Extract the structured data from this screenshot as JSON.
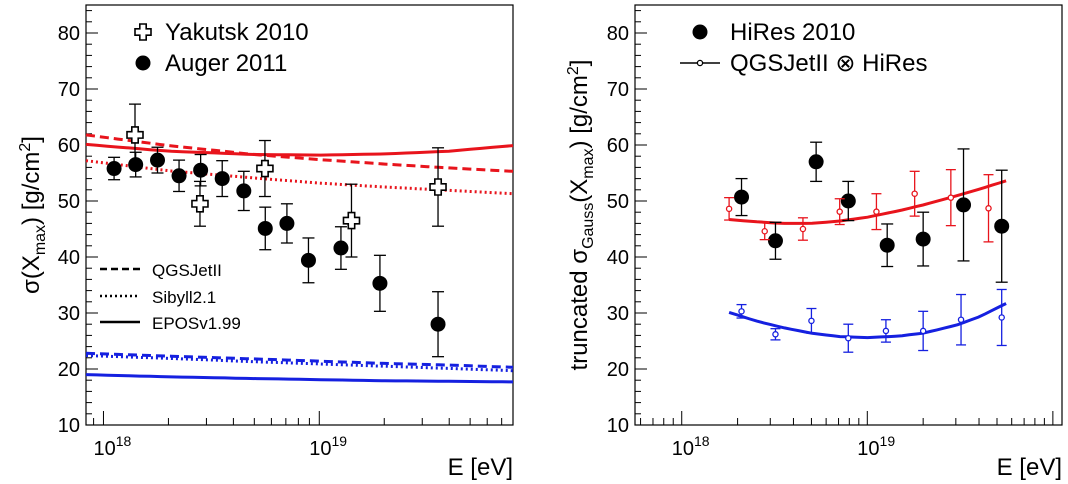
{
  "chart_data": [
    {
      "type": "scatter",
      "xlabel": "E [eV]",
      "ylabel": "σ(X_max) [g/cm²]",
      "xscale": "log",
      "xlim": [
        8.3e+17,
        7.9e+19
      ],
      "ylim": [
        10,
        85
      ],
      "xticks": [
        {
          "base": "10",
          "exp": "18",
          "value": 1e+18
        },
        {
          "base": "10",
          "exp": "19",
          "value": 1e+19
        }
      ],
      "yticks": [
        10,
        20,
        30,
        40,
        50,
        60,
        70,
        80
      ],
      "legend_top": [
        {
          "label": "Yakutsk 2010",
          "marker": "open-cross"
        },
        {
          "label": "Auger 2011",
          "marker": "filled-circle"
        }
      ],
      "legend_models": [
        {
          "label": "QGSJetII",
          "style": "dashed"
        },
        {
          "label": "Sibyll2.1",
          "style": "dotted"
        },
        {
          "label": "EPOSv1.99",
          "style": "solid"
        }
      ],
      "series": [
        {
          "name": "Yakutsk 2010",
          "marker": "open-cross",
          "points": [
            {
              "x": 1.4e+18,
              "y": 61.8,
              "err": 5.5
            },
            {
              "x": 2.8e+18,
              "y": 49.5,
              "err": 4.0
            },
            {
              "x": 5.6e+18,
              "y": 55.8,
              "err": 5.0
            },
            {
              "x": 1.41e+19,
              "y": 46.5,
              "err": 6.5
            },
            {
              "x": 3.55e+19,
              "y": 52.5,
              "err": 7.0
            }
          ]
        },
        {
          "name": "Auger 2011",
          "marker": "filled-circle",
          "points": [
            {
              "x": 1.12e+18,
              "y": 55.8,
              "err": 2.0
            },
            {
              "x": 1.41e+18,
              "y": 56.5,
              "err": 2.2
            },
            {
              "x": 1.78e+18,
              "y": 57.3,
              "err": 2.3
            },
            {
              "x": 2.24e+18,
              "y": 54.5,
              "err": 2.8
            },
            {
              "x": 2.82e+18,
              "y": 55.5,
              "err": 2.8
            },
            {
              "x": 3.55e+18,
              "y": 54.0,
              "err": 3.2
            },
            {
              "x": 4.47e+18,
              "y": 51.8,
              "err": 3.5
            },
            {
              "x": 5.62e+18,
              "y": 45.1,
              "err": 3.8
            },
            {
              "x": 7.08e+18,
              "y": 46.0,
              "err": 3.5
            },
            {
              "x": 8.91e+18,
              "y": 39.4,
              "err": 4.0
            },
            {
              "x": 1.26e+19,
              "y": 41.6,
              "err": 3.8
            },
            {
              "x": 1.91e+19,
              "y": 35.3,
              "err": 5.0
            },
            {
              "x": 3.55e+19,
              "y": 28.0,
              "err": 5.8
            }
          ]
        }
      ],
      "model_curves": [
        {
          "model": "QGSJetII",
          "component": "proton",
          "color": "#e8141c",
          "style": "dashed",
          "x": [
            8.3e+17,
            2e+18,
            5e+18,
            1e+19,
            2e+19,
            4e+19,
            7.9e+19
          ],
          "y": [
            61.8,
            59.9,
            58.3,
            57.4,
            56.6,
            55.9,
            55.3
          ]
        },
        {
          "model": "Sibyll2.1",
          "component": "proton",
          "color": "#e8141c",
          "style": "dotted",
          "x": [
            8.3e+17,
            2e+18,
            5e+18,
            1e+19,
            2e+19,
            4e+19,
            7.9e+19
          ],
          "y": [
            57.2,
            55.4,
            54.1,
            53.2,
            52.5,
            51.9,
            51.3
          ]
        },
        {
          "model": "EPOSv1.99",
          "component": "proton",
          "color": "#e8141c",
          "style": "solid",
          "x": [
            8.3e+17,
            2e+18,
            5e+18,
            1e+19,
            2e+19,
            4e+19,
            7.9e+19
          ],
          "y": [
            60.1,
            58.9,
            58.3,
            58.2,
            58.4,
            58.9,
            59.9
          ]
        },
        {
          "model": "QGSJetII",
          "component": "iron",
          "color": "#1520e0",
          "style": "dashed",
          "x": [
            8.3e+17,
            2e+18,
            5e+18,
            1e+19,
            2e+19,
            4e+19,
            7.9e+19
          ],
          "y": [
            22.8,
            22.3,
            21.8,
            21.4,
            21.0,
            20.7,
            20.3
          ]
        },
        {
          "model": "Sibyll2.1",
          "component": "iron",
          "color": "#1520e0",
          "style": "dotted",
          "x": [
            8.3e+17,
            2e+18,
            5e+18,
            1e+19,
            2e+19,
            4e+19,
            7.9e+19
          ],
          "y": [
            22.4,
            21.9,
            21.3,
            20.9,
            20.5,
            20.1,
            19.7
          ]
        },
        {
          "model": "EPOSv1.99",
          "component": "iron",
          "color": "#1520e0",
          "style": "solid",
          "x": [
            8.3e+17,
            2e+18,
            5e+18,
            1e+19,
            2e+19,
            4e+19,
            7.9e+19
          ],
          "y": [
            19.0,
            18.6,
            18.3,
            18.1,
            17.9,
            17.8,
            17.7
          ]
        }
      ],
      "grid": false
    },
    {
      "type": "scatter",
      "xlabel": "E [eV]",
      "ylabel": "truncated σ_Gauss(X_max) [g/cm²]",
      "xscale": "log",
      "xlim": [
        5.6e+17,
        1.12e+20
      ],
      "ylim": [
        10,
        85
      ],
      "xticks": [
        {
          "base": "10",
          "exp": "18",
          "value": 1e+18
        },
        {
          "base": "10",
          "exp": "19",
          "value": 1e+19
        }
      ],
      "yticks": [
        10,
        20,
        30,
        40,
        50,
        60,
        70,
        80
      ],
      "legend_top": [
        {
          "label": "HiRes 2010",
          "marker": "filled-circle"
        },
        {
          "label": "QGSJetII ⊗ HiRes",
          "marker": "small-open-circle-line"
        }
      ],
      "series": [
        {
          "name": "HiRes 2010",
          "marker": "filled-circle",
          "points": [
            {
              "x": 2.1e+18,
              "y": 50.7,
              "err": 3.3
            },
            {
              "x": 3.2e+18,
              "y": 42.9,
              "err": 3.3
            },
            {
              "x": 5.3e+18,
              "y": 57.0,
              "err": 3.5
            },
            {
              "x": 7.9e+18,
              "y": 50.0,
              "err": 3.5
            },
            {
              "x": 1.28e+19,
              "y": 42.1,
              "err": 3.8
            },
            {
              "x": 2e+19,
              "y": 43.2,
              "err": 4.8
            },
            {
              "x": 3.3e+19,
              "y": 49.3,
              "err": 10.0
            },
            {
              "x": 5.3e+19,
              "y": 45.5,
              "err": 10.0
            }
          ]
        },
        {
          "name": "QGSJetII ⊗ HiRes",
          "component": "proton",
          "marker": "small-open-circle",
          "color": "#e8141c",
          "points": [
            {
              "x": 1.8e+18,
              "y": 48.6,
              "err": 2.0
            },
            {
              "x": 2.8e+18,
              "y": 44.6,
              "err": 1.5
            },
            {
              "x": 4.5e+18,
              "y": 45.0,
              "err": 2.0
            },
            {
              "x": 7.1e+18,
              "y": 48.1,
              "err": 2.3
            },
            {
              "x": 1.12e+19,
              "y": 48.1,
              "err": 3.2
            },
            {
              "x": 1.8e+19,
              "y": 51.3,
              "err": 4.0
            },
            {
              "x": 2.82e+19,
              "y": 50.6,
              "err": 5.0
            },
            {
              "x": 4.5e+19,
              "y": 48.7,
              "err": 6.0
            }
          ]
        },
        {
          "name": "QGSJetII ⊗ HiRes",
          "component": "iron",
          "marker": "small-open-circle",
          "color": "#1520e0",
          "points": [
            {
              "x": 2.1e+18,
              "y": 30.3,
              "err": 1.2
            },
            {
              "x": 3.2e+18,
              "y": 26.2,
              "err": 1.0
            },
            {
              "x": 5e+18,
              "y": 28.6,
              "err": 2.2
            },
            {
              "x": 7.9e+18,
              "y": 25.5,
              "err": 2.5
            },
            {
              "x": 1.26e+19,
              "y": 26.8,
              "err": 2.0
            },
            {
              "x": 2e+19,
              "y": 26.8,
              "err": 3.5
            },
            {
              "x": 3.2e+19,
              "y": 28.8,
              "err": 4.5
            },
            {
              "x": 5.3e+19,
              "y": 29.2,
              "err": 5.0
            }
          ]
        }
      ],
      "model_curves": [
        {
          "component": "proton",
          "color": "#e8141c",
          "style": "solid",
          "x": [
            1.8e+18,
            2.5e+18,
            3.5e+18,
            5e+18,
            7e+18,
            1e+19,
            1.5e+19,
            2e+19,
            3e+19,
            4e+19,
            5.6e+19
          ],
          "y": [
            46.7,
            46.3,
            46.0,
            46.0,
            46.4,
            47.1,
            48.3,
            49.3,
            50.9,
            52.1,
            53.6
          ]
        },
        {
          "component": "iron",
          "color": "#1520e0",
          "style": "solid",
          "x": [
            1.8e+18,
            2.5e+18,
            3.5e+18,
            5e+18,
            7e+18,
            1e+19,
            1.5e+19,
            2e+19,
            3e+19,
            4e+19,
            5.6e+19
          ],
          "y": [
            30.1,
            28.6,
            27.4,
            26.4,
            25.8,
            25.6,
            25.9,
            26.4,
            27.8,
            29.3,
            31.7
          ]
        }
      ],
      "grid": false
    }
  ]
}
